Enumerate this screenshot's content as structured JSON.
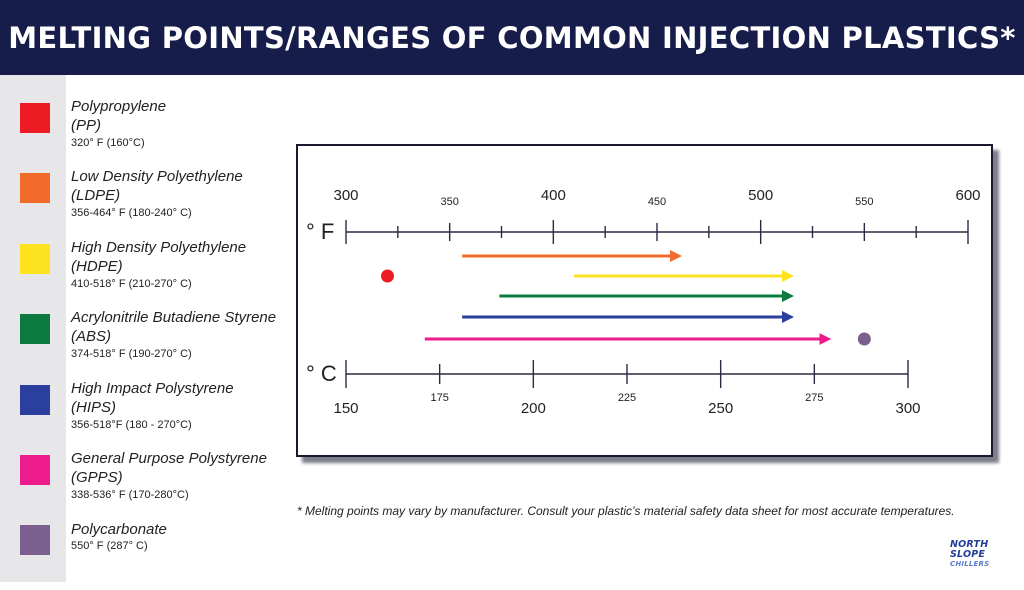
{
  "title": "MELTING POINTS/RANGES OF COMMON INJECTION PLASTICS*",
  "legend": [
    {
      "name": "Polypropylene",
      "abbr": "(PP)",
      "range": "320° F (160°C)",
      "color": "#ed1c24"
    },
    {
      "name": "Low Density Polyethylene",
      "abbr": "(LDPE)",
      "range": "356-464° F (180-240° C)",
      "color": "#f26b2a"
    },
    {
      "name": "High Density Polyethylene",
      "abbr": "(HDPE)",
      "range": "410-518° F (210-270° C)",
      "color": "#fde21f"
    },
    {
      "name": "Acrylonitrile Butadiene Styrene",
      "abbr": "(ABS)",
      "range": "374-518° F (190-270° C)",
      "color": "#0b7a3e"
    },
    {
      "name": "High Impact Polystyrene",
      "abbr": "(HIPS)",
      "range": "356-518°F (180 - 270°C)",
      "color": "#2a3f9e"
    },
    {
      "name": "General Purpose Polystyrene",
      "abbr": "(GPPS)",
      "range": "338-536° F (170-280°C)",
      "color": "#ec1c8c"
    },
    {
      "name": "Polycarbonate",
      "abbr": "",
      "range": "550° F (287° C)",
      "color": "#7b5f8f"
    }
  ],
  "chart_data": {
    "type": "range",
    "title": "MELTING POINTS/RANGES OF COMMON INJECTION PLASTICS*",
    "axes": {
      "fahrenheit": {
        "label": "° F",
        "range": [
          300,
          600
        ],
        "major_ticks": [
          300,
          400,
          500,
          600
        ],
        "minor_labels": [
          350,
          450,
          550
        ]
      },
      "celsius": {
        "label": "° C",
        "range": [
          150,
          300
        ],
        "major_ticks": [
          150,
          200,
          250,
          300
        ],
        "minor_labels": [
          175,
          225,
          275
        ]
      }
    },
    "series": [
      {
        "name": "Polypropylene",
        "kind": "point",
        "value": 320,
        "color": "#ed1c24"
      },
      {
        "name": "Low Density Polyethylene",
        "kind": "range",
        "from": 356,
        "to": 464,
        "color": "#f26b2a"
      },
      {
        "name": "High Density Polyethylene",
        "kind": "range",
        "from": 410,
        "to": 518,
        "color": "#fde21f"
      },
      {
        "name": "Acrylonitrile Butadiene Styrene",
        "kind": "range",
        "from": 374,
        "to": 518,
        "color": "#0b7a3e"
      },
      {
        "name": "High Impact Polystyrene",
        "kind": "range",
        "from": 356,
        "to": 518,
        "color": "#2a3f9e"
      },
      {
        "name": "General Purpose Polystyrene",
        "kind": "range",
        "from": 338,
        "to": 536,
        "color": "#ec1c8c"
      },
      {
        "name": "Polycarbonate",
        "kind": "point",
        "value": 550,
        "color": "#7b5f8f"
      }
    ]
  },
  "footnote": "*  Melting points may vary by manufacturer. Consult your plastic’s material safety data sheet for most accurate temperatures.",
  "logo": {
    "line1": "NORTH",
    "line2": "SLOPE",
    "line3": "CHILLERS"
  }
}
